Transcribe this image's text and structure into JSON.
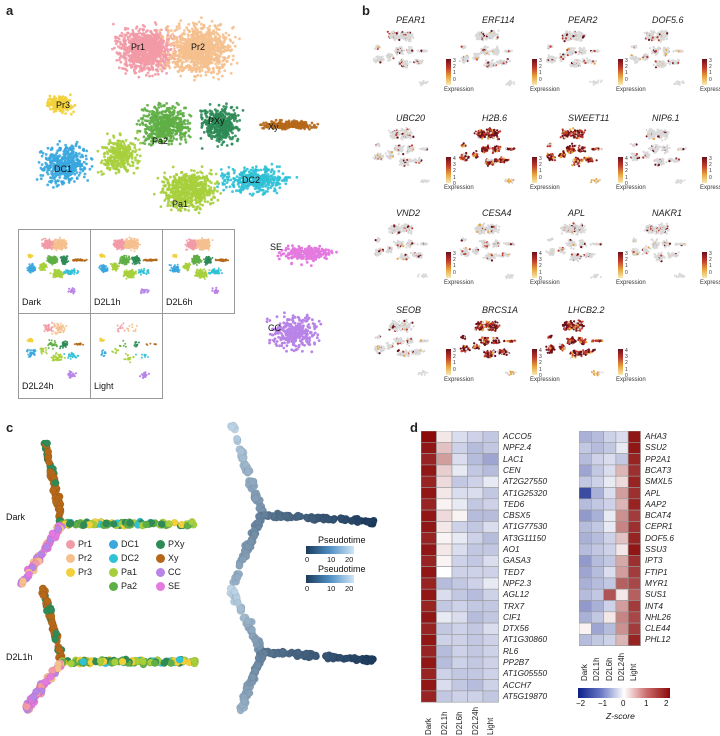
{
  "panels": {
    "a": "a",
    "b": "b",
    "c": "c",
    "d": "d"
  },
  "colors": {
    "Pr1": "#f29aa6",
    "Pr2": "#f5c08e",
    "Pr3": "#f2d03a",
    "DC1": "#3aa7df",
    "DC2": "#2fc1d6",
    "Pa1": "#a7cf3c",
    "Pa2": "#5fae46",
    "PXy": "#2e8b57",
    "Xy": "#b5681a",
    "CC": "#b984e8",
    "SE": "#e47ae0"
  },
  "umap_labels": [
    "Pr1",
    "Pr2",
    "Pr3",
    "Pa2",
    "PXy",
    "Xy",
    "DC1",
    "DC2",
    "Pa1",
    "SE",
    "CC"
  ],
  "conditions": [
    "Dark",
    "D2L1h",
    "D2L6h",
    "D2L24h",
    "Light"
  ],
  "feature_genes": [
    {
      "name": "PEAR1",
      "ticks": [
        "3",
        "2",
        "1",
        "0"
      ]
    },
    {
      "name": "ERF114",
      "ticks": [
        "3",
        "2",
        "1",
        "0"
      ]
    },
    {
      "name": "PEAR2",
      "ticks": [
        "3",
        "2",
        "1",
        "0"
      ]
    },
    {
      "name": "DOF5.6",
      "ticks": [
        "3",
        "2",
        "1",
        "0"
      ]
    },
    {
      "name": "UBC20",
      "ticks": [
        "4",
        "3",
        "2",
        "1",
        "0"
      ]
    },
    {
      "name": "H2B.6",
      "ticks": [
        "3",
        "2",
        "1",
        "0"
      ]
    },
    {
      "name": "SWEET11",
      "ticks": [
        "4",
        "3",
        "2",
        "1",
        "0"
      ]
    },
    {
      "name": "NIP6.1",
      "ticks": [
        "3",
        "2",
        "1",
        "0"
      ]
    },
    {
      "name": "VND2",
      "ticks": [
        "3",
        "2",
        "1",
        "0"
      ]
    },
    {
      "name": "CESA4",
      "ticks": [
        "4",
        "3",
        "2",
        "1",
        "0"
      ]
    },
    {
      "name": "APL",
      "ticks": [
        "3",
        "2",
        "1",
        "0"
      ]
    },
    {
      "name": "NAKR1",
      "ticks": [
        "3",
        "2",
        "1",
        "0"
      ]
    },
    {
      "name": "SEOB",
      "ticks": [
        "3",
        "2",
        "1",
        "0"
      ]
    },
    {
      "name": "BRCS1A",
      "ticks": [
        "4",
        "3",
        "2",
        "1",
        "0"
      ]
    },
    {
      "name": "LHCB2.2",
      "ticks": [
        "4",
        "3",
        "2",
        "1",
        "0"
      ]
    }
  ],
  "expression_label": "Expression",
  "trajectory": {
    "conditions": [
      "Dark",
      "D2L1h"
    ],
    "legend": [
      "Pr1",
      "Pr2",
      "Pr3",
      "DC1",
      "DC2",
      "Pa1",
      "Pa2",
      "PXy",
      "Xy",
      "CC",
      "SE"
    ],
    "pseudotime_label": "Pseudotime",
    "pseudotime_ticks": [
      "0",
      "10",
      "20"
    ]
  },
  "heatmap": {
    "columns": [
      "Dark",
      "D2L1h",
      "D2L6h",
      "D2L24h",
      "Light"
    ],
    "left_genes": [
      "ACCO5",
      "NPF2.4",
      "LAC1",
      "CEN",
      "AT2G27550",
      "AT1G25320",
      "TED6",
      "CBSX5",
      "AT1G77530",
      "AT3G11150",
      "AO1",
      "GASA3",
      "TED7",
      "NPF2.3",
      "AGL12",
      "TRX7",
      "CIF1",
      "DTX56",
      "AT1G30860",
      "RL6",
      "PP2B7",
      "AT1G05550",
      "ACCH7",
      "AT5G19870"
    ],
    "right_genes": [
      "AHA3",
      "SSU2",
      "PP2A1",
      "BCAT3",
      "SMXL5",
      "APL",
      "AAP2",
      "BCAT4",
      "CEPR1",
      "DOF5.6",
      "SSU3",
      "IPT3",
      "FTIP1",
      "MYR1",
      "SUS1",
      "INT4",
      "NHL26",
      "CLE44",
      "PHL12"
    ],
    "left_values": [
      [
        2.0,
        0.2,
        -0.3,
        -0.4,
        -0.5
      ],
      [
        1.9,
        0.5,
        -0.4,
        -0.6,
        -0.5
      ],
      [
        1.8,
        0.8,
        -0.3,
        -0.6,
        -0.8
      ],
      [
        1.9,
        0.4,
        -0.2,
        -0.5,
        -0.6
      ],
      [
        1.8,
        0.3,
        -0.5,
        -0.4,
        -0.2
      ],
      [
        1.9,
        0.2,
        -0.3,
        -0.3,
        -0.5
      ],
      [
        1.8,
        0.1,
        -0.2,
        -0.5,
        -0.4
      ],
      [
        1.9,
        0.3,
        0.1,
        -0.6,
        -0.6
      ],
      [
        1.9,
        0.2,
        -0.4,
        -0.5,
        -0.3
      ],
      [
        1.8,
        0.1,
        -0.2,
        -0.4,
        -0.6
      ],
      [
        1.9,
        0.2,
        -0.3,
        -0.5,
        -0.5
      ],
      [
        1.8,
        0.1,
        -0.4,
        -0.5,
        -0.3
      ],
      [
        1.9,
        0.0,
        -0.4,
        -0.4,
        -0.4
      ],
      [
        1.8,
        -0.6,
        -0.5,
        -0.4,
        -0.2
      ],
      [
        1.9,
        -0.3,
        -0.5,
        -0.6,
        -0.4
      ],
      [
        1.8,
        -0.5,
        -0.4,
        -0.5,
        -0.5
      ],
      [
        1.9,
        -0.2,
        -0.3,
        -0.6,
        -0.5
      ],
      [
        1.8,
        -0.5,
        -0.4,
        -0.5,
        -0.3
      ],
      [
        1.9,
        -0.4,
        -0.4,
        -0.5,
        -0.4
      ],
      [
        1.8,
        -0.6,
        -0.4,
        -0.5,
        -0.4
      ],
      [
        1.9,
        -0.6,
        -0.4,
        -0.5,
        -0.4
      ],
      [
        1.8,
        -0.4,
        -0.5,
        -0.5,
        -0.4
      ],
      [
        1.9,
        -0.3,
        -0.5,
        -0.6,
        -0.4
      ],
      [
        1.8,
        -0.5,
        -0.4,
        -0.4,
        -0.5
      ]
    ],
    "right_values": [
      [
        -0.7,
        -0.6,
        -0.4,
        -0.3,
        1.9
      ],
      [
        -0.5,
        -0.6,
        -0.5,
        -0.2,
        1.9
      ],
      [
        -0.6,
        -0.4,
        -0.3,
        -0.5,
        1.8
      ],
      [
        -0.8,
        -0.5,
        -0.3,
        0.6,
        1.7
      ],
      [
        -0.5,
        -0.4,
        -0.2,
        0.3,
        1.8
      ],
      [
        -1.6,
        -0.7,
        -0.3,
        0.8,
        1.7
      ],
      [
        -0.6,
        -0.5,
        -0.4,
        0.6,
        1.8
      ],
      [
        -0.9,
        -0.7,
        -0.2,
        0.9,
        1.6
      ],
      [
        -0.6,
        -0.5,
        -0.2,
        1.0,
        1.7
      ],
      [
        -0.7,
        -0.6,
        -0.4,
        0.5,
        1.8
      ],
      [
        -0.6,
        -0.5,
        -0.4,
        0.2,
        1.9
      ],
      [
        -0.9,
        -0.6,
        -0.5,
        0.7,
        1.7
      ],
      [
        -0.8,
        -0.6,
        -0.3,
        0.8,
        1.6
      ],
      [
        -0.7,
        -0.6,
        -0.5,
        1.3,
        1.5
      ],
      [
        -0.6,
        -0.5,
        1.4,
        0.2,
        1.3
      ],
      [
        -0.9,
        -0.7,
        -0.4,
        0.8,
        1.6
      ],
      [
        -0.7,
        -0.5,
        0.2,
        1.0,
        1.5
      ],
      [
        0.1,
        -0.8,
        -0.6,
        0.9,
        1.6
      ],
      [
        -0.6,
        -0.5,
        -0.4,
        0.6,
        1.8
      ]
    ],
    "zscore_label": "Z-score",
    "zscore_ticks": [
      "−2",
      "−1",
      "0",
      "1",
      "2"
    ]
  },
  "chart_data": {
    "type": "heatmap",
    "columns": [
      "Dark",
      "D2L1h",
      "D2L6h",
      "D2L24h",
      "Light"
    ],
    "color_scale": {
      "label": "Z-score",
      "range": [
        -2,
        2
      ],
      "low": "#0b1f8a",
      "mid": "#ffffff",
      "high": "#8b0a0a"
    },
    "note_rows": "rows listed in heatmap.left_genes / heatmap.right_genes with values in heatmap.left_values / heatmap.right_values"
  }
}
